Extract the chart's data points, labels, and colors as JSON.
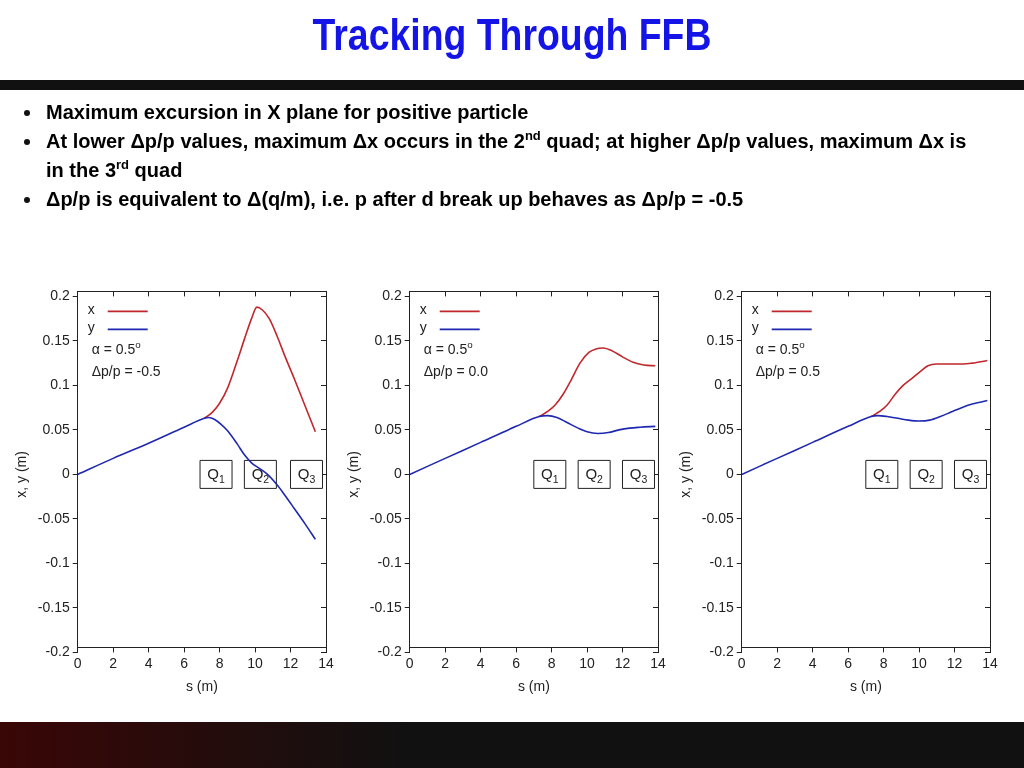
{
  "chart_data": [
    {
      "type": "other",
      "title": "Tracking Through FFB",
      "annotations": [
        "Maximum excursion in X plane for positive particle",
        "At lower Δp/p values, maximum Δx occurs in the 2$^{nd}$ quad; at higher Δp/p values, maximum Δx is in the 3$^{rd}$ quad",
        "Δp/p is equivalent to Δ(q/m), i.e. p after d break up behaves as Δp/p = -0.5"
      ]
    },
    {
      "type": "line",
      "xlabel": "s (m)",
      "ylabel": "x, y (m)",
      "xlim": [
        0,
        14
      ],
      "xticks": [
        0,
        2,
        4,
        6,
        8,
        10,
        12,
        14
      ],
      "ylim": [
        -0.2,
        0.2
      ],
      "yticks": [
        -0.2,
        -0.15,
        -0.1,
        -0.05,
        0,
        0.05,
        0.1,
        0.15,
        0.2
      ],
      "grid": false,
      "legend": "top left",
      "marker": "none",
      "line_style": "solid",
      "series": [
        {
          "name": "x",
          "color": "#c0282d",
          "x": [
            7.14,
            7.6,
            8,
            8.45,
            9,
            9.4,
            9.8,
            10.1,
            10.4,
            10.8,
            11.25,
            11.7,
            12.2,
            12.8,
            13.4
          ],
          "values": [
            0.063,
            0.07,
            0.08,
            0.097,
            0.128,
            0.152,
            0.175,
            0.188,
            0.185,
            0.175,
            0.155,
            0.132,
            0.108,
            0.078,
            0.048
          ]
        },
        {
          "name": "y",
          "color": "#1f28b0",
          "x": [
            0,
            2,
            4,
            6,
            7.14,
            7.4,
            7.7,
            8.1,
            8.45,
            9,
            9.4,
            9.8,
            10.3,
            10.7,
            11.25,
            11.7,
            12.2,
            12.8,
            13.4
          ],
          "values": [
            0,
            0.018,
            0.035,
            0.053,
            0.063,
            0.064,
            0.062,
            0.056,
            0.049,
            0.034,
            0.022,
            0.013,
            0.006,
            0,
            -0.012,
            -0.024,
            -0.038,
            -0.055,
            -0.073
          ]
        }
      ],
      "annotations": [
        "α = 0.5$^{o}$",
        "Δp/p = -0.5",
        {
          "text": "Q$_{1}$",
          "x": 7.8,
          "y": 0
        },
        {
          "text": "Q$_{2}$",
          "x": 10.3,
          "y": 0
        },
        {
          "text": "Q$_{3}$",
          "x": 12.9,
          "y": 0
        }
      ]
    },
    {
      "type": "line",
      "xlabel": "s (m)",
      "ylabel": "x, y (m)",
      "xlim": [
        0,
        14
      ],
      "xticks": [
        0,
        2,
        4,
        6,
        8,
        10,
        12,
        14
      ],
      "ylim": [
        -0.2,
        0.2
      ],
      "yticks": [
        -0.2,
        -0.15,
        -0.1,
        -0.05,
        0,
        0.05,
        0.1,
        0.15,
        0.2
      ],
      "grid": false,
      "legend": "top left",
      "marker": "none",
      "line_style": "solid",
      "series": [
        {
          "name": "x",
          "color": "#c0282d",
          "x": [
            7.3,
            7.8,
            8.2,
            8.65,
            9.1,
            9.6,
            10.1,
            10.5,
            10.9,
            11.4,
            12,
            12.6,
            13.2,
            13.85
          ],
          "values": [
            0.065,
            0.071,
            0.078,
            0.09,
            0.106,
            0.125,
            0.137,
            0.141,
            0.142,
            0.139,
            0.132,
            0.126,
            0.123,
            0.122
          ]
        },
        {
          "name": "y",
          "color": "#1f28b0",
          "x": [
            0,
            2,
            4,
            6,
            7.3,
            7.77,
            8.3,
            8.9,
            9.5,
            10,
            10.6,
            11.2,
            11.8,
            12.4,
            13,
            13.85
          ],
          "values": [
            0,
            0.018,
            0.036,
            0.054,
            0.065,
            0.066,
            0.064,
            0.058,
            0.052,
            0.048,
            0.046,
            0.047,
            0.05,
            0.052,
            0.053,
            0.054
          ]
        }
      ],
      "annotations": [
        "α = 0.5$^{o}$",
        "Δp/p = 0.0",
        {
          "text": "Q$_{1}$",
          "x": 7.9,
          "y": 0
        },
        {
          "text": "Q$_{2}$",
          "x": 10.4,
          "y": 0
        },
        {
          "text": "Q$_{3}$",
          "x": 12.9,
          "y": 0
        }
      ]
    },
    {
      "type": "line",
      "xlabel": "s (m)",
      "ylabel": "x, y (m)",
      "xlim": [
        0,
        14
      ],
      "xticks": [
        0,
        2,
        4,
        6,
        8,
        10,
        12,
        14
      ],
      "ylim": [
        -0.2,
        0.2
      ],
      "yticks": [
        -0.2,
        -0.15,
        -0.1,
        -0.05,
        0,
        0.05,
        0.1,
        0.15,
        0.2
      ],
      "grid": false,
      "legend": "top left",
      "marker": "none",
      "line_style": "solid",
      "series": [
        {
          "name": "x",
          "color": "#c0282d",
          "x": [
            7.3,
            7.8,
            8.2,
            8.65,
            9.1,
            9.6,
            10.1,
            10.5,
            10.97,
            11.5,
            12,
            12.5,
            13,
            13.85
          ],
          "values": [
            0.065,
            0.071,
            0.078,
            0.09,
            0.1,
            0.108,
            0.116,
            0.122,
            0.124,
            0.124,
            0.124,
            0.124,
            0.125,
            0.128
          ]
        },
        {
          "name": "y",
          "color": "#1f28b0",
          "x": [
            0,
            2,
            4,
            6,
            7.3,
            7.67,
            8.2,
            8.8,
            9.4,
            10,
            10.6,
            11.2,
            11.8,
            12.4,
            13,
            13.85
          ],
          "values": [
            0,
            0.018,
            0.036,
            0.054,
            0.065,
            0.066,
            0.065,
            0.063,
            0.061,
            0.06,
            0.061,
            0.065,
            0.07,
            0.075,
            0.079,
            0.083
          ]
        }
      ],
      "annotations": [
        "α = 0.5$^{o}$",
        "Δp/p = 0.5",
        {
          "text": "Q$_{1}$",
          "x": 7.9,
          "y": 0
        },
        {
          "text": "Q$_{2}$",
          "x": 10.4,
          "y": 0
        },
        {
          "text": "Q$_{3}$",
          "x": 12.9,
          "y": 0
        }
      ]
    }
  ]
}
